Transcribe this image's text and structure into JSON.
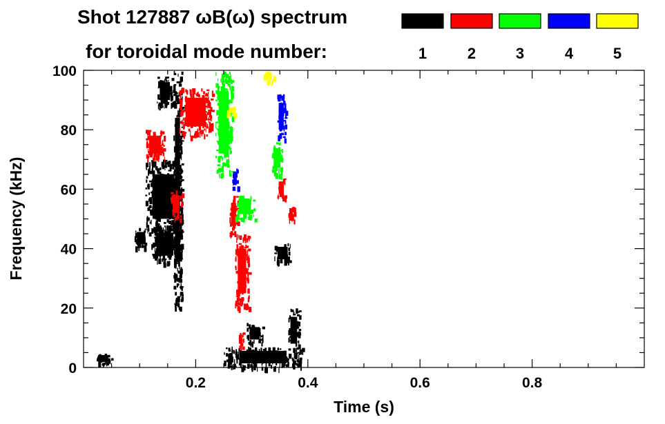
{
  "chart_data": {
    "type": "heatmap",
    "title_line1": "Shot 127887 ωB(ω) spectrum",
    "title_line2": "for toroidal mode number:",
    "xlabel": "Time (s)",
    "ylabel": "Frequency (kHz)",
    "xlim": [
      0.0,
      1.0
    ],
    "ylim": [
      0,
      100
    ],
    "x_ticks": [
      0.2,
      0.4,
      0.6,
      0.8
    ],
    "x_tick_labels": [
      "0.2",
      "0.4",
      "0.6",
      "0.8"
    ],
    "y_ticks": [
      0,
      20,
      40,
      60,
      80,
      100
    ],
    "y_tick_labels": [
      "0",
      "20",
      "40",
      "60",
      "80",
      "100"
    ],
    "grid": false,
    "legend": [
      {
        "mode": "1",
        "color": "#000000"
      },
      {
        "mode": "2",
        "color": "#ff0000"
      },
      {
        "mode": "3",
        "color": "#00ff00"
      },
      {
        "mode": "4",
        "color": "#0000ff"
      },
      {
        "mode": "5",
        "color": "#ffff00"
      }
    ],
    "regions": [
      {
        "mode": "1",
        "t": [
          0.02,
          0.05
        ],
        "f": [
          1,
          5
        ]
      },
      {
        "mode": "1",
        "t": [
          0.09,
          0.115
        ],
        "f": [
          40,
          47
        ]
      },
      {
        "mode": "1",
        "t": [
          0.11,
          0.175
        ],
        "f": [
          45,
          70
        ]
      },
      {
        "mode": "1",
        "t": [
          0.12,
          0.17
        ],
        "f": [
          35,
          48
        ]
      },
      {
        "mode": "1",
        "t": [
          0.16,
          0.175
        ],
        "f": [
          20,
          100
        ]
      },
      {
        "mode": "1",
        "t": [
          0.13,
          0.16
        ],
        "f": [
          88,
          98
        ]
      },
      {
        "mode": "1",
        "t": [
          0.25,
          0.39
        ],
        "f": [
          0,
          7
        ]
      },
      {
        "mode": "1",
        "t": [
          0.34,
          0.37
        ],
        "f": [
          35,
          42
        ]
      },
      {
        "mode": "1",
        "t": [
          0.365,
          0.385
        ],
        "f": [
          5,
          20
        ]
      },
      {
        "mode": "1",
        "t": [
          0.29,
          0.32
        ],
        "f": [
          8,
          15
        ]
      },
      {
        "mode": "2",
        "t": [
          0.11,
          0.145
        ],
        "f": [
          70,
          80
        ]
      },
      {
        "mode": "2",
        "t": [
          0.17,
          0.23
        ],
        "f": [
          78,
          94
        ]
      },
      {
        "mode": "2",
        "t": [
          0.155,
          0.175
        ],
        "f": [
          50,
          60
        ]
      },
      {
        "mode": "2",
        "t": [
          0.27,
          0.295
        ],
        "f": [
          20,
          45
        ]
      },
      {
        "mode": "2",
        "t": [
          0.26,
          0.275
        ],
        "f": [
          45,
          58
        ]
      },
      {
        "mode": "2",
        "t": [
          0.275,
          0.285
        ],
        "f": [
          7,
          12
        ]
      },
      {
        "mode": "2",
        "t": [
          0.345,
          0.36
        ],
        "f": [
          57,
          64
        ]
      },
      {
        "mode": "2",
        "t": [
          0.365,
          0.375
        ],
        "f": [
          48,
          55
        ]
      },
      {
        "mode": "3",
        "t": [
          0.235,
          0.265
        ],
        "f": [
          65,
          100
        ]
      },
      {
        "mode": "3",
        "t": [
          0.27,
          0.305
        ],
        "f": [
          50,
          58
        ]
      },
      {
        "mode": "3",
        "t": [
          0.335,
          0.355
        ],
        "f": [
          65,
          76
        ]
      },
      {
        "mode": "4",
        "t": [
          0.345,
          0.36
        ],
        "f": [
          77,
          92
        ]
      },
      {
        "mode": "4",
        "t": [
          0.265,
          0.275
        ],
        "f": [
          60,
          67
        ]
      },
      {
        "mode": "5",
        "t": [
          0.255,
          0.275
        ],
        "f": [
          85,
          88
        ]
      },
      {
        "mode": "5",
        "t": [
          0.32,
          0.34
        ],
        "f": [
          96,
          100
        ]
      }
    ]
  }
}
